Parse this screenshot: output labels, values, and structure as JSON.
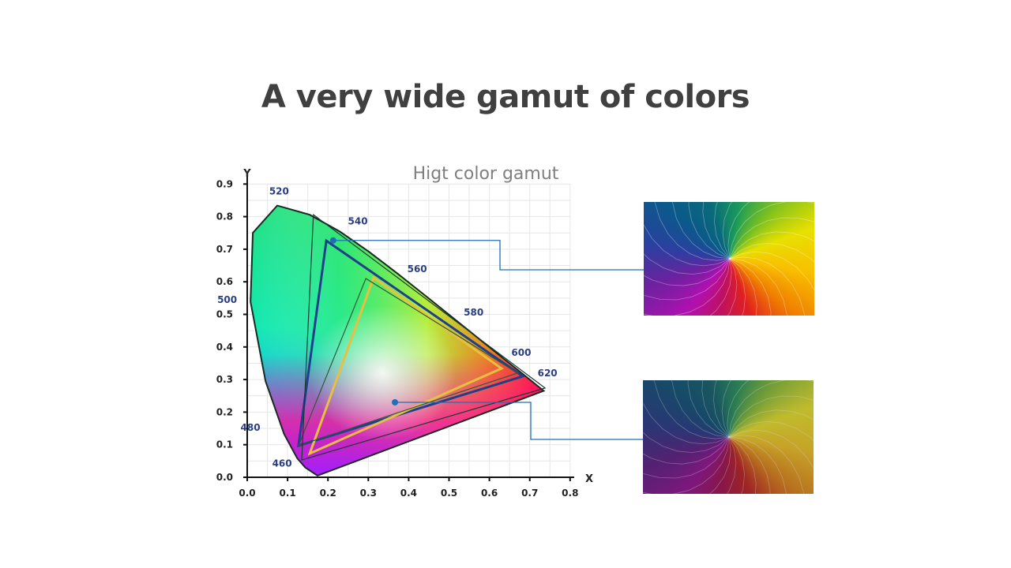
{
  "slide": {
    "title": "A very wide gamut of colors",
    "subtitle": "Higt color gamut"
  },
  "diagram": {
    "type": "cie-1931-chromaticity",
    "x_axis_label": "X",
    "y_axis_label": "Y",
    "x_ticks": [
      "0.0",
      "0.1",
      "0.2",
      "0.3",
      "0.4",
      "0.5",
      "0.6",
      "0.7",
      "0.8"
    ],
    "y_ticks": [
      "0.0",
      "0.1",
      "0.2",
      "0.3",
      "0.4",
      "0.5",
      "0.6",
      "0.7",
      "0.8",
      "0.9"
    ],
    "xlim": [
      0,
      0.8
    ],
    "ylim": [
      0,
      0.9
    ],
    "wavelength_labels": [
      {
        "label": "460",
        "x": 0.144,
        "y": 0.03
      },
      {
        "label": "480",
        "x": 0.091,
        "y": 0.133
      },
      {
        "label": "500",
        "x": 0.008,
        "y": 0.538
      },
      {
        "label": "520",
        "x": 0.074,
        "y": 0.834
      },
      {
        "label": "540",
        "x": 0.23,
        "y": 0.754
      },
      {
        "label": "560",
        "x": 0.373,
        "y": 0.625
      },
      {
        "label": "580",
        "x": 0.513,
        "y": 0.487
      },
      {
        "label": "600",
        "x": 0.627,
        "y": 0.373
      },
      {
        "label": "620",
        "x": 0.692,
        "y": 0.308
      }
    ],
    "gamut_triangles": [
      {
        "color": "#1f3f8a",
        "points": [
          [
            0.196,
            0.726
          ],
          [
            0.683,
            0.31
          ],
          [
            0.127,
            0.097
          ]
        ]
      },
      {
        "color": "#e8c040",
        "points": [
          [
            0.313,
            0.613
          ],
          [
            0.63,
            0.334
          ],
          [
            0.155,
            0.073
          ]
        ]
      },
      {
        "color": "#2e5a3a",
        "points": [
          [
            0.294,
            0.61
          ],
          [
            0.67,
            0.32
          ],
          [
            0.127,
            0.097
          ]
        ]
      },
      {
        "color": "#1a3a30",
        "points": [
          [
            0.164,
            0.806
          ],
          [
            0.738,
            0.274
          ],
          [
            0.135,
            0.053
          ]
        ]
      }
    ],
    "callouts": [
      {
        "point": [
          0.213,
          0.727
        ],
        "target": "wide-gamut-image"
      },
      {
        "point": [
          0.366,
          0.23
        ],
        "target": "standard-gamut-image"
      }
    ],
    "callout_color": "#1f6fb8"
  },
  "images": [
    {
      "name": "wide-gamut-image"
    },
    {
      "name": "standard-gamut-image"
    }
  ]
}
